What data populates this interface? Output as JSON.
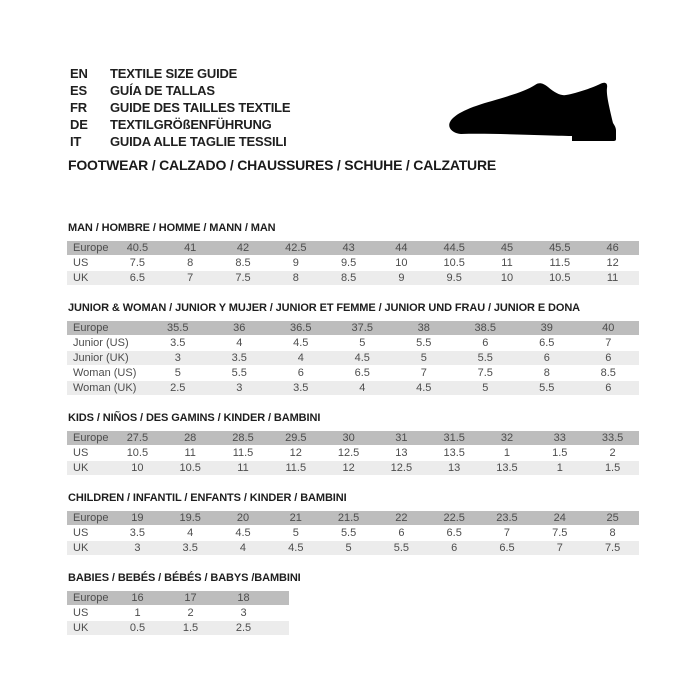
{
  "header": {
    "languages": [
      {
        "code": "EN",
        "label": "TEXTILE SIZE GUIDE"
      },
      {
        "code": "ES",
        "label": "GUÍA DE TALLAS"
      },
      {
        "code": "FR",
        "label": "GUIDE DES TAILLES TEXTILE"
      },
      {
        "code": "DE",
        "label": "TEXTILGRÖßENFÜHRUNG"
      },
      {
        "code": "IT",
        "label": "GUIDA ALLE TAGLIE TESSILI"
      }
    ],
    "category_line": "FOOTWEAR / CALZADO / CHAUSSURES / SCHUHE / CALZATURE",
    "shoe_icon": "dress-shoe-silhouette"
  },
  "colors": {
    "header_row_bg": "#bdbdbd",
    "alt_row_bg": "#ececec",
    "plain_row_bg": "#ffffff",
    "table_text": "#4d4d4d",
    "heading_text": "#1e1e1e",
    "icon_color": "#000000"
  },
  "tables": [
    {
      "title": "MAN / HOMBRE / HOMME / MANN / MAN",
      "rows": [
        {
          "label": "Europe",
          "style": "header",
          "values": [
            "40.5",
            "41",
            "42",
            "42.5",
            "43",
            "44",
            "44.5",
            "45",
            "45.5",
            "46"
          ]
        },
        {
          "label": "US",
          "style": "plain",
          "values": [
            "7.5",
            "8",
            "8.5",
            "9",
            "9.5",
            "10",
            "10.5",
            "11",
            "11.5",
            "12"
          ]
        },
        {
          "label": "UK",
          "style": "alt",
          "values": [
            "6.5",
            "7",
            "7.5",
            "8",
            "8.5",
            "9",
            "9.5",
            "10",
            "10.5",
            "11"
          ]
        }
      ]
    },
    {
      "title": "JUNIOR & WOMAN / JUNIOR Y MUJER / JUNIOR ET FEMME / JUNIOR UND FRAU / JUNIOR E DONA",
      "rows": [
        {
          "label": "Europe",
          "style": "header",
          "values": [
            "35.5",
            "36",
            "36.5",
            "37.5",
            "38",
            "38.5",
            "39",
            "40"
          ]
        },
        {
          "label": "Junior (US)",
          "style": "plain",
          "values": [
            "3.5",
            "4",
            "4.5",
            "5",
            "5.5",
            "6",
            "6.5",
            "7"
          ]
        },
        {
          "label": "Junior (UK)",
          "style": "alt",
          "values": [
            "3",
            "3.5",
            "4",
            "4.5",
            "5",
            "5.5",
            "6",
            "6"
          ]
        },
        {
          "label": "Woman (US)",
          "style": "plain",
          "values": [
            "5",
            "5.5",
            "6",
            "6.5",
            "7",
            "7.5",
            "8",
            "8.5"
          ]
        },
        {
          "label": "Woman (UK)",
          "style": "alt",
          "values": [
            "2.5",
            "3",
            "3.5",
            "4",
            "4.5",
            "5",
            "5.5",
            "6"
          ]
        }
      ]
    },
    {
      "title": "KIDS / NIÑOS / DES GAMINS / KINDER / BAMBINI",
      "rows": [
        {
          "label": "Europe",
          "style": "header",
          "values": [
            "27.5",
            "28",
            "28.5",
            "29.5",
            "30",
            "31",
            "31.5",
            "32",
            "33",
            "33.5"
          ]
        },
        {
          "label": "US",
          "style": "plain",
          "values": [
            "10.5",
            "11",
            "11.5",
            "12",
            "12.5",
            "13",
            "13.5",
            "1",
            "1.5",
            "2"
          ]
        },
        {
          "label": "UK",
          "style": "alt",
          "values": [
            "10",
            "10.5",
            "11",
            "11.5",
            "12",
            "12.5",
            "13",
            "13.5",
            "1",
            "1.5"
          ]
        }
      ]
    },
    {
      "title": "CHILDREN / INFANTIL / ENFANTS / KINDER / BAMBINI",
      "rows": [
        {
          "label": "Europe",
          "style": "header",
          "values": [
            "19",
            "19.5",
            "20",
            "21",
            "21.5",
            "22",
            "22.5",
            "23.5",
            "24",
            "25"
          ]
        },
        {
          "label": "US",
          "style": "plain",
          "values": [
            "3.5",
            "4",
            "4.5",
            "5",
            "5.5",
            "6",
            "6.5",
            "7",
            "7.5",
            "8"
          ]
        },
        {
          "label": "UK",
          "style": "alt",
          "values": [
            "3",
            "3.5",
            "4",
            "4.5",
            "5",
            "5.5",
            "6",
            "6.5",
            "7",
            "7.5"
          ]
        }
      ]
    },
    {
      "title": "BABIES  / BEBÉS / BÉBÉS / BABYS /BAMBINI",
      "rows": [
        {
          "label": "Europe",
          "style": "header",
          "values": [
            "16",
            "17",
            "18"
          ]
        },
        {
          "label": "US",
          "style": "plain",
          "values": [
            "1",
            "2",
            "3"
          ]
        },
        {
          "label": "UK",
          "style": "alt",
          "values": [
            "0.5",
            "1.5",
            "2.5"
          ]
        }
      ]
    }
  ]
}
